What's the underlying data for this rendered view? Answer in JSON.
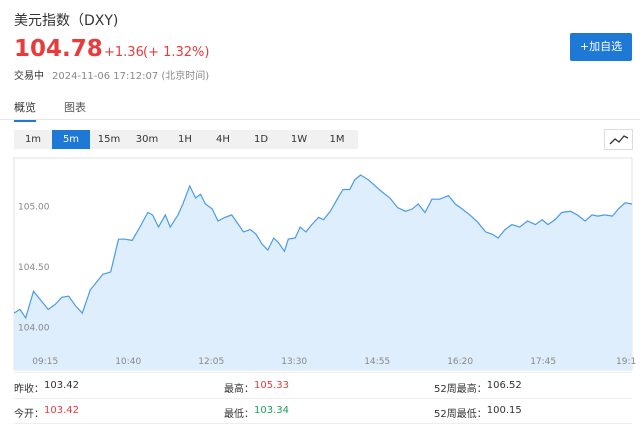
{
  "header": {
    "title": "美元指数（DXY)",
    "price": "104.78",
    "change": "+1.36",
    "change_pct": "(+ 1.32%)",
    "status": "交易中",
    "timestamp": "2024-11-06 17:12:07 (北京时间)",
    "button": "+加自选"
  },
  "tabs": [
    "概览",
    "图表"
  ],
  "intervals": [
    "1m",
    "5m",
    "15m",
    "30m",
    "1H",
    "4H",
    "1D",
    "1W",
    "1M"
  ],
  "active_interval": 1,
  "chart_data": {
    "type": "line",
    "color": "#4a9be8",
    "fill_color": "#deeefc",
    "grid": false,
    "x": [
      523,
      529,
      535,
      543,
      550,
      558,
      565,
      572,
      579,
      586,
      593,
      601,
      608,
      614,
      622,
      630,
      637,
      644,
      652,
      660,
      665,
      671,
      678,
      683,
      691,
      696,
      703,
      709,
      714,
      719,
      726,
      732,
      739,
      746,
      753,
      758,
      765,
      771,
      777,
      783,
      789,
      794,
      800,
      804,
      811,
      816,
      822,
      828,
      835,
      840,
      847,
      854,
      860,
      867,
      872,
      878,
      886,
      893,
      900,
      908,
      916,
      924,
      931,
      937,
      944,
      951,
      959,
      968,
      975,
      982,
      990,
      998,
      1006,
      1013,
      1019,
      1026,
      1033,
      1041,
      1049,
      1057,
      1064,
      1070,
      1077,
      1084,
      1093,
      1100,
      1108,
      1115,
      1121,
      1128,
      1136,
      1142,
      1149,
      1156
    ],
    "values": [
      104.12,
      104.15,
      104.08,
      104.3,
      104.23,
      104.15,
      104.19,
      104.25,
      104.26,
      104.18,
      104.12,
      104.31,
      104.38,
      104.44,
      104.46,
      104.73,
      104.73,
      104.72,
      104.83,
      104.95,
      104.93,
      104.83,
      104.93,
      104.83,
      104.93,
      105.02,
      105.17,
      105.07,
      105.1,
      105.02,
      104.98,
      104.88,
      104.91,
      104.93,
      104.85,
      104.79,
      104.81,
      104.77,
      104.69,
      104.64,
      104.74,
      104.7,
      104.63,
      104.73,
      104.74,
      104.83,
      104.79,
      104.85,
      104.91,
      104.89,
      104.96,
      105.06,
      105.14,
      105.14,
      105.22,
      105.26,
      105.22,
      105.17,
      105.12,
      105.07,
      104.99,
      104.96,
      104.98,
      105.02,
      104.95,
      105.06,
      105.06,
      105.09,
      105.02,
      104.98,
      104.93,
      104.87,
      104.79,
      104.77,
      104.74,
      104.81,
      104.85,
      104.83,
      104.88,
      104.85,
      104.89,
      104.85,
      104.89,
      104.95,
      104.96,
      104.93,
      104.88,
      104.93,
      104.92,
      104.93,
      104.92,
      104.98,
      105.03,
      105.02
    ],
    "xlim": [
      523,
      1156
    ],
    "ylim": [
      103.65,
      105.4
    ],
    "xticks": [
      {
        "value": 555,
        "label": "09:15"
      },
      {
        "value": 640,
        "label": "10:40"
      },
      {
        "value": 725,
        "label": "12:05"
      },
      {
        "value": 810,
        "label": "13:30"
      },
      {
        "value": 895,
        "label": "14:55"
      },
      {
        "value": 980,
        "label": "16:20"
      },
      {
        "value": 1065,
        "label": "17:45"
      },
      {
        "value": 1150,
        "label": "19:1"
      }
    ],
    "yticks": [
      {
        "value": 104,
        "label": "104.00"
      },
      {
        "value": 104.5,
        "label": "104.50"
      },
      {
        "value": 105,
        "label": "105.00"
      }
    ]
  },
  "stats": [
    {
      "label": "昨收：",
      "value": "103.42",
      "color": "#333333"
    },
    {
      "label": "最高：",
      "value": "105.33",
      "color": "#e93b3b"
    },
    {
      "label": "52周最高：",
      "value": "106.52",
      "color": "#333333"
    },
    {
      "label": "今开：",
      "value": "103.42",
      "color": "#e93b3b"
    },
    {
      "label": "最低：",
      "value": "103.34",
      "color": "#1aa260"
    },
    {
      "label": "52周最低：",
      "value": "100.15",
      "color": "#333333"
    }
  ]
}
